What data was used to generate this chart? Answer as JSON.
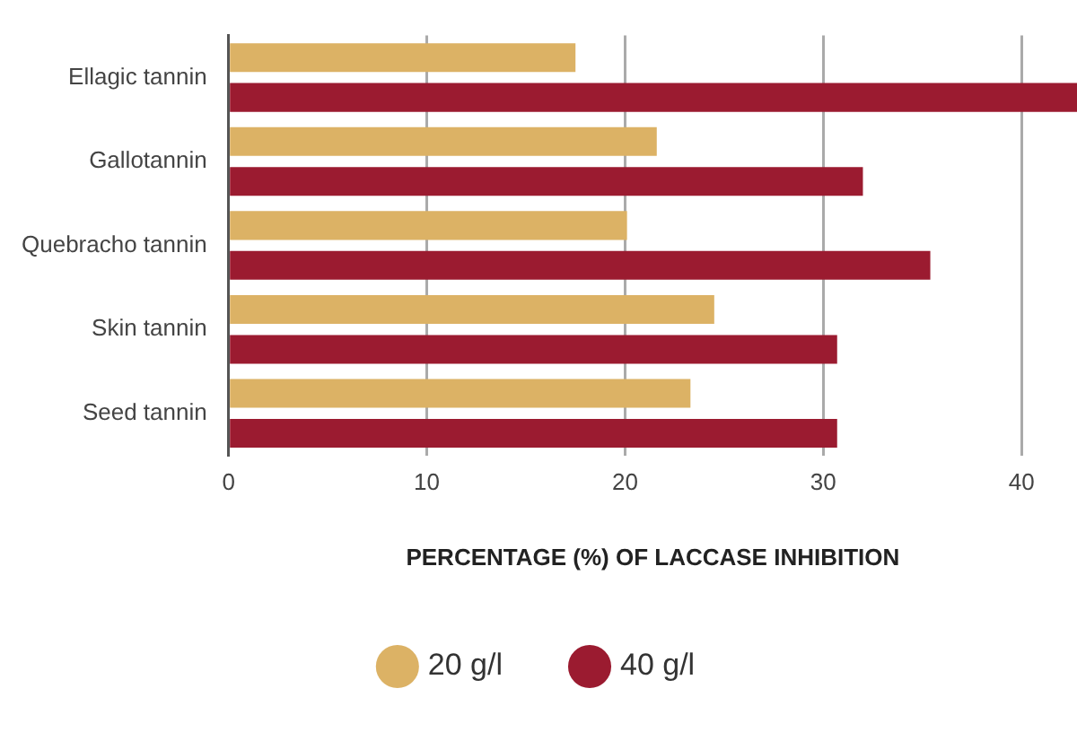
{
  "chart_data": {
    "type": "bar",
    "orientation": "horizontal",
    "xlabel": "PERCENTAGE (%) OF LACCASE INHIBITION",
    "categories": [
      "Ellagic tannin",
      "Gallotannin",
      "Quebracho tannin",
      "Skin tannin",
      "Seed tannin"
    ],
    "series": [
      {
        "name": "20 g/l",
        "color": "#dcb265",
        "values": [
          17.5,
          21.6,
          20.1,
          24.5,
          23.3
        ]
      },
      {
        "name": "40 g/l",
        "color": "#9b1b30",
        "values": [
          42.8,
          32.0,
          35.4,
          30.7,
          30.7
        ]
      }
    ],
    "xlim": [
      0,
      42.8
    ],
    "xticks": [
      0,
      10,
      20,
      30,
      40
    ],
    "grid": "x",
    "legend": "bottom"
  }
}
